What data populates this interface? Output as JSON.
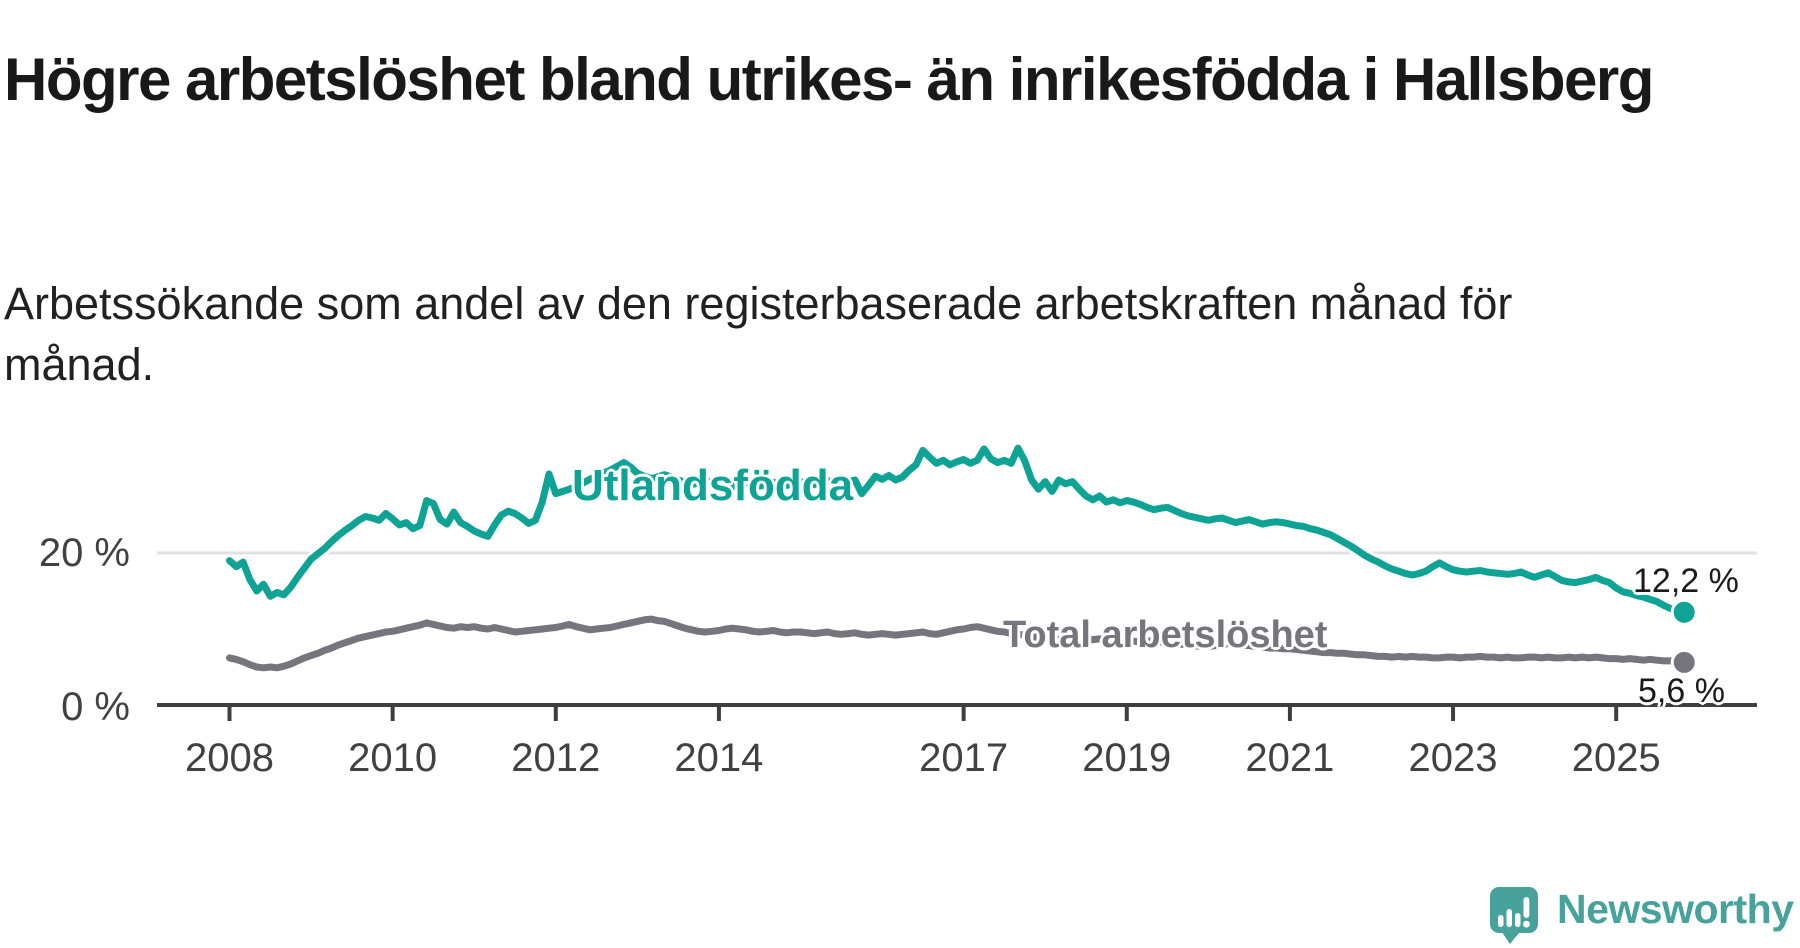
{
  "header": {
    "title": "Högre arbetslöshet bland utrikes- än inrikesfödda i Hallsberg",
    "subtitle": "Arbetssökande som andel av den registerbaserade arbetskraften månad för månad."
  },
  "footer": {
    "brand": "Newsworthy"
  },
  "colors": {
    "series_foreign_born": "#0fa396",
    "series_total": "#76757d",
    "axis": "#3e3d40",
    "grid": "#e1e1e1",
    "tick_text": "#414042",
    "value_text": "#1a1a1a",
    "brand": "#46a29b",
    "background": "#ffffff"
  },
  "chart_data": {
    "type": "line",
    "title": "Högre arbetslöshet bland utrikes- än inrikesfödda i Hallsberg",
    "subtitle": "Arbetssökande som andel av den registerbaserade arbetskraften månad för månad.",
    "xlabel": "",
    "ylabel": "",
    "grid": "horizontal-20-only",
    "legend_position": "inline-labels-on-lines",
    "x_axis": {
      "tick_labels": [
        "2008",
        "2010",
        "2012",
        "2014",
        "2017",
        "2019",
        "2021",
        "2023",
        "2025"
      ],
      "tick_years": [
        2008,
        2010,
        2012,
        2014,
        2017,
        2019,
        2021,
        2023,
        2025
      ],
      "range_years": [
        2007.1,
        2026.7
      ]
    },
    "y_axis": {
      "ticks": [
        {
          "value": 0,
          "label": "0 %"
        },
        {
          "value": 20,
          "label": "20 %"
        }
      ],
      "range": [
        0,
        36
      ]
    },
    "x_start_year": 2008,
    "x_interval": "monthly",
    "series": [
      {
        "name": "Utlandsfödda",
        "color": "#0fa396",
        "end_label": "12,2 %",
        "end_value": 12.2,
        "values": [
          19.0,
          18.2,
          18.8,
          16.5,
          15.0,
          15.9,
          14.3,
          14.8,
          14.5,
          15.5,
          16.8,
          18.0,
          19.2,
          19.9,
          20.6,
          21.5,
          22.3,
          23.0,
          23.6,
          24.3,
          24.8,
          24.6,
          24.3,
          25.2,
          24.5,
          23.7,
          24.0,
          23.2,
          23.6,
          26.9,
          26.5,
          24.4,
          23.8,
          25.4,
          24.0,
          23.5,
          22.9,
          22.5,
          22.2,
          23.7,
          25.0,
          25.5,
          25.2,
          24.6,
          23.9,
          24.3,
          26.7,
          30.4,
          27.8,
          28.1,
          28.4,
          28.8,
          29.2,
          29.7,
          30.1,
          30.5,
          30.9,
          31.4,
          31.9,
          31.3,
          30.5,
          30.1,
          29.8,
          30.0,
          30.3,
          30.0,
          29.6,
          29.3,
          29.0,
          29.2,
          29.5,
          29.3,
          29.1,
          28.9,
          28.7,
          29.0,
          29.2,
          29.0,
          28.8,
          29.0,
          29.3,
          29.1,
          28.9,
          29.2,
          29.4,
          29.2,
          29.0,
          29.3,
          29.5,
          29.4,
          29.2,
          29.4,
          29.6,
          27.8,
          28.9,
          30.1,
          29.7,
          30.2,
          29.6,
          30.0,
          30.9,
          31.6,
          33.5,
          32.6,
          31.8,
          32.2,
          31.6,
          32.0,
          32.3,
          31.8,
          32.2,
          33.7,
          32.4,
          31.9,
          32.2,
          31.8,
          33.8,
          32.1,
          29.6,
          28.4,
          29.4,
          28.1,
          29.6,
          29.1,
          29.4,
          28.4,
          27.5,
          27.0,
          27.5,
          26.7,
          27.0,
          26.6,
          26.9,
          26.7,
          26.4,
          26.0,
          25.7,
          25.9,
          26.0,
          25.6,
          25.2,
          24.9,
          24.7,
          24.5,
          24.3,
          24.5,
          24.6,
          24.3,
          24.0,
          24.2,
          24.4,
          24.1,
          23.8,
          24.0,
          24.1,
          24.0,
          23.8,
          23.6,
          23.5,
          23.2,
          23.0,
          22.7,
          22.4,
          21.9,
          21.4,
          20.9,
          20.3,
          19.7,
          19.2,
          18.8,
          18.3,
          17.9,
          17.6,
          17.3,
          17.1,
          17.3,
          17.6,
          18.2,
          18.7,
          18.2,
          17.8,
          17.6,
          17.5,
          17.6,
          17.7,
          17.5,
          17.4,
          17.3,
          17.2,
          17.3,
          17.5,
          17.1,
          16.8,
          17.1,
          17.4,
          16.9,
          16.4,
          16.2,
          16.1,
          16.3,
          16.5,
          16.8,
          16.4,
          16.1,
          15.4,
          14.9,
          14.7,
          14.4,
          14.2,
          13.9,
          13.6,
          13.1,
          12.7,
          12.4,
          12.2
        ]
      },
      {
        "name": "Total arbetslöshet",
        "color": "#76757d",
        "end_label": "5,6 %",
        "end_value": 5.6,
        "values": [
          6.2,
          6.0,
          5.7,
          5.3,
          5.0,
          4.9,
          5.0,
          4.9,
          5.1,
          5.4,
          5.8,
          6.2,
          6.5,
          6.8,
          7.2,
          7.5,
          7.9,
          8.2,
          8.5,
          8.8,
          9.0,
          9.2,
          9.4,
          9.6,
          9.7,
          9.9,
          10.1,
          10.3,
          10.5,
          10.8,
          10.6,
          10.4,
          10.2,
          10.1,
          10.3,
          10.2,
          10.3,
          10.1,
          10.0,
          10.2,
          10.0,
          9.8,
          9.6,
          9.7,
          9.8,
          9.9,
          10.0,
          10.1,
          10.2,
          10.4,
          10.6,
          10.3,
          10.1,
          9.9,
          10.0,
          10.1,
          10.2,
          10.4,
          10.6,
          10.8,
          11.0,
          11.2,
          11.3,
          11.1,
          11.0,
          10.7,
          10.4,
          10.1,
          9.9,
          9.7,
          9.6,
          9.7,
          9.8,
          10.0,
          10.1,
          10.0,
          9.9,
          9.7,
          9.6,
          9.7,
          9.8,
          9.6,
          9.5,
          9.6,
          9.6,
          9.5,
          9.4,
          9.5,
          9.6,
          9.4,
          9.3,
          9.4,
          9.5,
          9.3,
          9.2,
          9.3,
          9.4,
          9.3,
          9.2,
          9.3,
          9.4,
          9.5,
          9.6,
          9.4,
          9.3,
          9.5,
          9.7,
          9.9,
          10.0,
          10.2,
          10.3,
          10.1,
          9.9,
          9.7,
          9.6,
          9.4,
          9.3,
          9.2,
          9.0,
          8.9,
          8.8,
          8.7,
          8.6,
          8.7,
          8.8,
          8.6,
          8.5,
          8.6,
          8.7,
          8.5,
          8.4,
          8.5,
          8.5,
          8.4,
          8.3,
          8.4,
          8.5,
          8.3,
          8.2,
          8.1,
          8.0,
          7.9,
          7.8,
          7.7,
          7.7,
          7.8,
          7.9,
          8.1,
          8.0,
          7.9,
          7.8,
          7.7,
          7.6,
          7.5,
          7.5,
          7.4,
          7.4,
          7.3,
          7.2,
          7.1,
          7.0,
          6.9,
          6.9,
          6.8,
          6.8,
          6.7,
          6.6,
          6.6,
          6.5,
          6.4,
          6.4,
          6.3,
          6.4,
          6.3,
          6.4,
          6.3,
          6.3,
          6.2,
          6.2,
          6.3,
          6.3,
          6.2,
          6.3,
          6.3,
          6.4,
          6.3,
          6.3,
          6.2,
          6.3,
          6.2,
          6.2,
          6.3,
          6.3,
          6.2,
          6.3,
          6.2,
          6.2,
          6.3,
          6.2,
          6.3,
          6.2,
          6.3,
          6.2,
          6.1,
          6.1,
          6.0,
          6.1,
          6.0,
          5.9,
          6.0,
          5.9,
          5.8,
          5.8,
          5.7,
          5.6
        ]
      }
    ]
  }
}
